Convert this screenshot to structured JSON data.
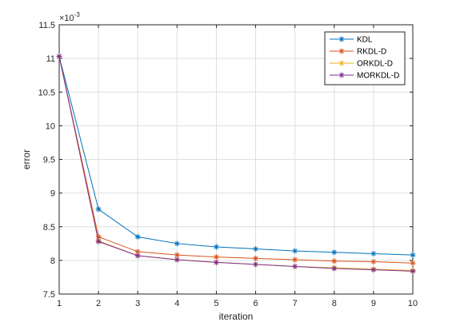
{
  "chart_data": {
    "type": "line",
    "xlabel": "iteration",
    "ylabel": "error",
    "xlim": [
      1,
      10
    ],
    "ylim": [
      7.5,
      11.5
    ],
    "xticks": [
      1,
      2,
      3,
      4,
      5,
      6,
      7,
      8,
      9,
      10
    ],
    "yticks": [
      7.5,
      8,
      8.5,
      9,
      9.5,
      10,
      10.5,
      11,
      11.5
    ],
    "ytick_labels": [
      "7.5",
      "8",
      "8.5",
      "9",
      "9.5",
      "10",
      "10.5",
      "11",
      "11.5"
    ],
    "y_exponent_label": "×10",
    "y_exponent_power": "-3",
    "grid": true,
    "legend_position": "top-right",
    "x": [
      1,
      2,
      3,
      4,
      5,
      6,
      7,
      8,
      9,
      10
    ],
    "series": [
      {
        "name": "KDL",
        "color": "#0072BD",
        "values": [
          11.03,
          8.76,
          8.35,
          8.25,
          8.2,
          8.17,
          8.14,
          8.12,
          8.1,
          8.08
        ]
      },
      {
        "name": "RKDL-D",
        "color": "#D95319",
        "values": [
          11.03,
          8.35,
          8.13,
          8.08,
          8.05,
          8.03,
          8.01,
          7.99,
          7.98,
          7.96
        ]
      },
      {
        "name": "ORKDL-D",
        "color": "#EDB120",
        "values": [
          11.03,
          8.29,
          8.07,
          8.01,
          7.97,
          7.94,
          7.91,
          7.89,
          7.87,
          7.85
        ]
      },
      {
        "name": "MORKDL-D",
        "color": "#7E2F8E",
        "values": [
          11.03,
          8.28,
          8.07,
          8.01,
          7.97,
          7.94,
          7.91,
          7.88,
          7.86,
          7.84
        ]
      }
    ]
  }
}
